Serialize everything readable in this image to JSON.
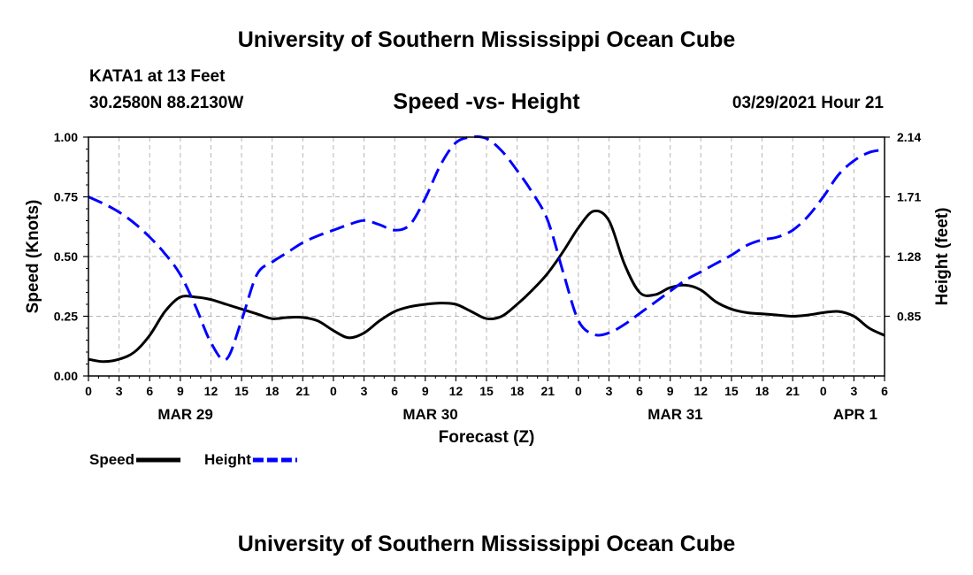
{
  "header": {
    "title": "University of Southern Mississippi Ocean Cube",
    "station": "KATA1 at 13 Feet",
    "coords": "30.2580N  88.2130W",
    "chart_title": "Speed -vs- Height",
    "datetime": "03/29/2021 Hour 21"
  },
  "footer": {
    "title": "University of Southern Mississippi Ocean Cube"
  },
  "legend": {
    "items": [
      {
        "label": "Speed",
        "color": "#000000",
        "style": "solid"
      },
      {
        "label": "Height",
        "color": "#0000ff",
        "style": "dashed"
      }
    ]
  },
  "chart_data": {
    "type": "line",
    "title": "Speed -vs- Height",
    "xlabel": "Forecast (Z)",
    "ylabel_left": "Speed (Knots)",
    "ylabel_right": "Height (feet)",
    "x_unit": "hours since 2021-03-29 00Z",
    "xlim": [
      0,
      78
    ],
    "ylim_left": [
      0,
      1.0
    ],
    "ylim_right": [
      0.42,
      2.14
    ],
    "yticks_left": [
      "0.00",
      "0.25",
      "0.50",
      "0.75",
      "1.00"
    ],
    "yticks_left_values": [
      0,
      0.25,
      0.5,
      0.75,
      1.0
    ],
    "yticks_right": [
      "0.85",
      "1.28",
      "1.71",
      "2.14"
    ],
    "yticks_right_values": [
      0.85,
      1.28,
      1.71,
      2.14
    ],
    "x_tick_labels": [
      "0",
      "3",
      "6",
      "9",
      "12",
      "15",
      "18",
      "21",
      "0",
      "3",
      "6",
      "9",
      "12",
      "15",
      "18",
      "21",
      "0",
      "3",
      "6",
      "9",
      "12",
      "15",
      "18",
      "21",
      "0",
      "3",
      "6"
    ],
    "x_tick_values": [
      0,
      3,
      6,
      9,
      12,
      15,
      18,
      21,
      24,
      27,
      30,
      33,
      36,
      39,
      42,
      45,
      48,
      51,
      54,
      57,
      60,
      63,
      66,
      69,
      72,
      75,
      78
    ],
    "date_labels": [
      {
        "label": "MAR 29",
        "x": 9.5
      },
      {
        "label": "MAR 30",
        "x": 33.5
      },
      {
        "label": "MAR 31",
        "x": 57.5
      },
      {
        "label": "APR 1",
        "x": 78
      }
    ],
    "grid": true,
    "series": [
      {
        "name": "Speed",
        "axis": "left",
        "color": "#000000",
        "x": [
          0,
          1.5,
          3,
          4.5,
          6,
          7.5,
          9,
          10.5,
          12,
          13.5,
          15,
          16.5,
          18,
          19.5,
          21,
          22.5,
          24,
          25.5,
          27,
          28.5,
          30,
          31.5,
          33,
          34.5,
          36,
          37.5,
          39,
          40.5,
          42,
          43.5,
          45,
          46.5,
          48,
          49.5,
          51,
          52.5,
          54,
          55.5,
          57,
          58.5,
          60,
          61.5,
          63,
          64.5,
          66,
          67.5,
          69,
          70.5,
          72,
          73.5,
          75,
          76.5,
          78
        ],
        "values": [
          0.07,
          0.06,
          0.07,
          0.1,
          0.17,
          0.27,
          0.33,
          0.33,
          0.32,
          0.3,
          0.28,
          0.26,
          0.24,
          0.245,
          0.245,
          0.23,
          0.19,
          0.16,
          0.18,
          0.23,
          0.27,
          0.29,
          0.3,
          0.305,
          0.3,
          0.27,
          0.24,
          0.25,
          0.3,
          0.36,
          0.43,
          0.52,
          0.62,
          0.69,
          0.65,
          0.47,
          0.35,
          0.34,
          0.37,
          0.38,
          0.36,
          0.31,
          0.28,
          0.265,
          0.26,
          0.255,
          0.25,
          0.255,
          0.265,
          0.27,
          0.25,
          0.2,
          0.17
        ]
      },
      {
        "name": "Height",
        "axis": "right",
        "color": "#0000ff",
        "x": [
          0,
          1.5,
          3,
          4.5,
          6,
          7.5,
          9,
          10.5,
          12,
          13.5,
          15,
          16.5,
          18,
          19.5,
          21,
          22.5,
          24,
          25.5,
          27,
          28.5,
          30,
          31.5,
          33,
          34.5,
          36,
          37.5,
          39,
          40.5,
          42,
          43.5,
          45,
          46.5,
          48,
          49.5,
          51,
          52.5,
          54,
          55.5,
          57,
          58.5,
          60,
          61.5,
          63,
          64.5,
          66,
          67.5,
          69,
          70.5,
          72,
          73.5,
          75,
          76.5,
          78
        ],
        "values": [
          1.71,
          1.66,
          1.6,
          1.52,
          1.42,
          1.3,
          1.15,
          0.92,
          0.66,
          0.54,
          0.82,
          1.15,
          1.24,
          1.31,
          1.38,
          1.43,
          1.47,
          1.51,
          1.54,
          1.51,
          1.47,
          1.51,
          1.7,
          1.94,
          2.1,
          2.14,
          2.13,
          2.04,
          1.9,
          1.74,
          1.54,
          1.17,
          0.82,
          0.72,
          0.73,
          0.79,
          0.87,
          0.95,
          1.03,
          1.11,
          1.17,
          1.23,
          1.29,
          1.36,
          1.4,
          1.42,
          1.47,
          1.57,
          1.71,
          1.87,
          1.97,
          2.03,
          2.05
        ]
      }
    ]
  }
}
